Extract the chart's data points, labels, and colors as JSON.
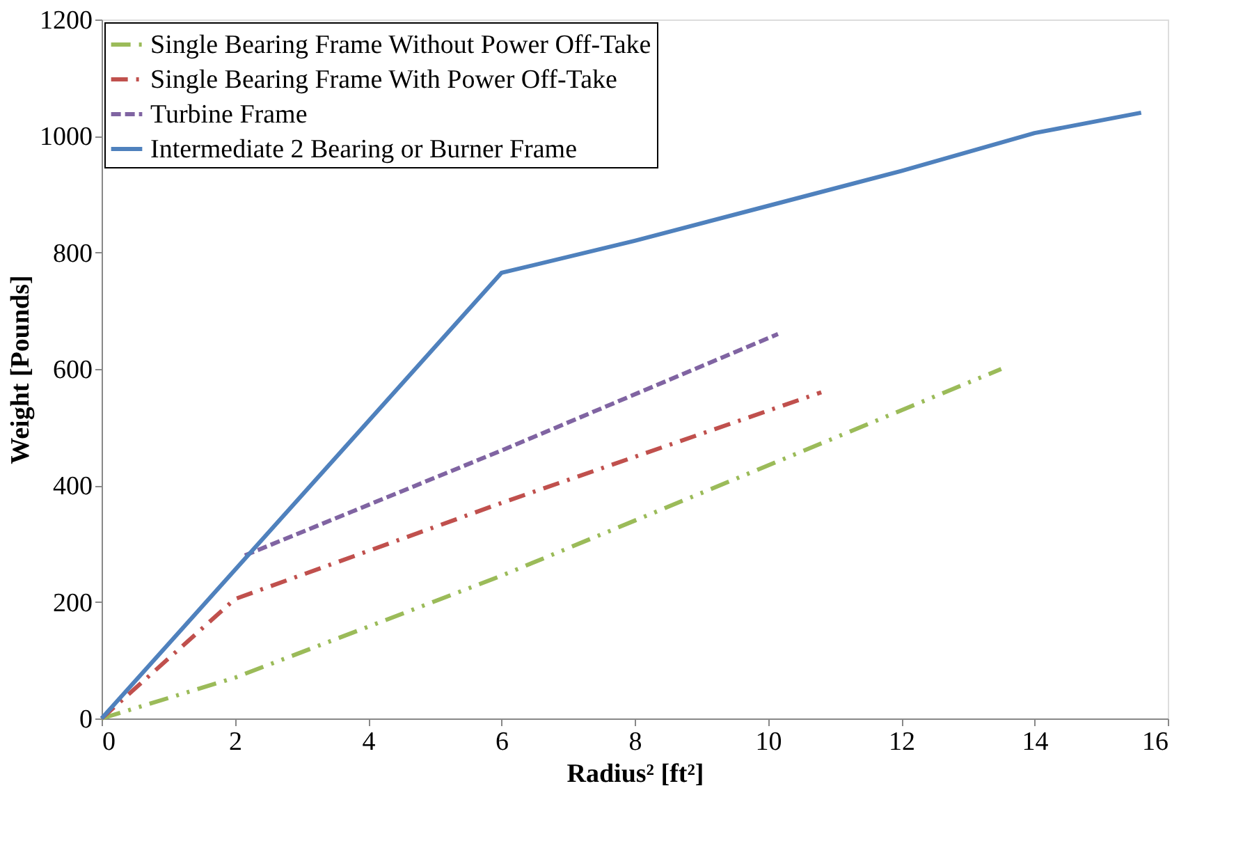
{
  "chart_data": {
    "type": "line",
    "xlabel": "Radius² [ft²]",
    "ylabel": "Weight [Pounds]",
    "xlim": [
      0,
      16
    ],
    "xticks": [
      0,
      2,
      4,
      6,
      8,
      10,
      12,
      14,
      16
    ],
    "ylim": [
      0,
      1200
    ],
    "yticks": [
      0,
      200,
      400,
      600,
      800,
      1000,
      1200
    ],
    "grid": false,
    "legend": "top left",
    "marker": "none",
    "series": [
      {
        "name": "Single Bearing Frame Without Power Off-Take",
        "color": "#9bbb59",
        "line_style": "dashdotdot",
        "x": [
          0,
          2,
          6,
          13.5
        ],
        "values": [
          0,
          70,
          245,
          600
        ]
      },
      {
        "name": "Single Bearing Frame With Power Off-Take",
        "color": "#c0504d",
        "line_style": "dashdot",
        "x": [
          0,
          2,
          6,
          10.8
        ],
        "values": [
          0,
          205,
          370,
          560
        ]
      },
      {
        "name": "Turbine Frame",
        "color": "#8064a2",
        "line_style": "dashed",
        "x": [
          2.15,
          6,
          10.15
        ],
        "values": [
          280,
          460,
          660
        ]
      },
      {
        "name": "Intermediate 2 Bearing or Burner Frame",
        "color": "#4f81bd",
        "line_style": "solid",
        "x": [
          0,
          6,
          8,
          10,
          12,
          14,
          15.6
        ],
        "values": [
          0,
          765,
          820,
          880,
          940,
          1005,
          1040
        ]
      }
    ]
  }
}
